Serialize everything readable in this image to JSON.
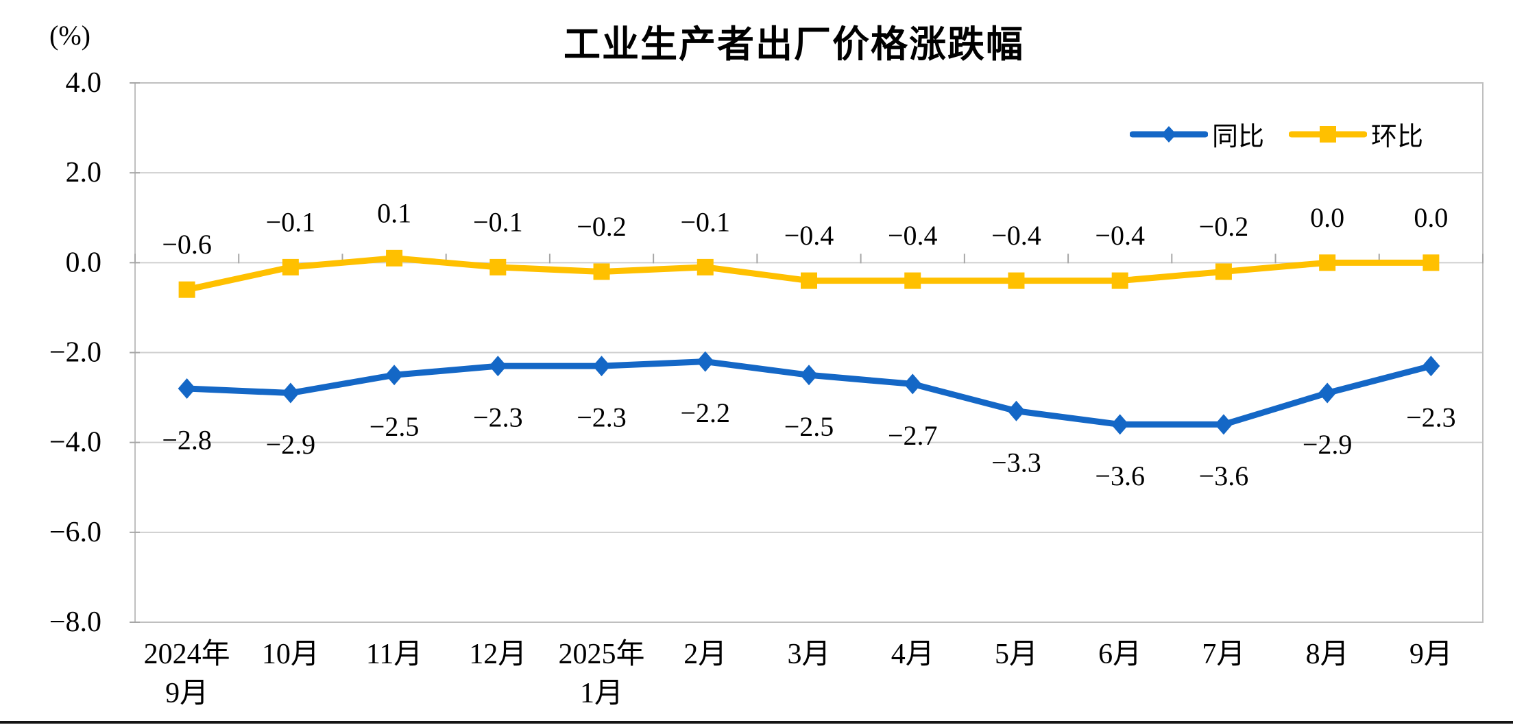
{
  "chart_data": {
    "type": "line",
    "title": "工业生产者出厂价格涨跌幅",
    "y_axis_unit": "(%)",
    "ylim": [
      -8.0,
      4.0
    ],
    "ytick_interval": 2.0,
    "yticks": [
      "4.0",
      "2.0",
      "0.0",
      "-2.0",
      "-4.0",
      "-6.0",
      "-8.0"
    ],
    "grid": true,
    "legend_position": "top-right",
    "categories": [
      "2024年9月",
      "10月",
      "11月",
      "12月",
      "2025年1月",
      "2月",
      "3月",
      "4月",
      "5月",
      "6月",
      "7月",
      "8月",
      "9月"
    ],
    "category_label_lines": [
      [
        "2024年",
        "9月"
      ],
      [
        "10月"
      ],
      [
        "11月"
      ],
      [
        "12月"
      ],
      [
        "2025年",
        "1月"
      ],
      [
        "2月"
      ],
      [
        "3月"
      ],
      [
        "4月"
      ],
      [
        "5月"
      ],
      [
        "6月"
      ],
      [
        "7月"
      ],
      [
        "8月"
      ],
      [
        "9月"
      ]
    ],
    "series": [
      {
        "name": "同比",
        "marker": "diamond",
        "color": "#1467C6",
        "values": [
          -2.8,
          -2.9,
          -2.5,
          -2.3,
          -2.3,
          -2.2,
          -2.5,
          -2.7,
          -3.3,
          -3.6,
          -3.6,
          -2.9,
          -2.3
        ],
        "labels": [
          "-2.8",
          "-2.9",
          "-2.5",
          "-2.3",
          "-2.3",
          "-2.2",
          "-2.5",
          "-2.7",
          "-3.3",
          "-3.6",
          "-3.6",
          "-2.9",
          "-2.3"
        ]
      },
      {
        "name": "环比",
        "marker": "square",
        "color": "#FFC000",
        "values": [
          -0.6,
          -0.1,
          0.1,
          -0.1,
          -0.2,
          -0.1,
          -0.4,
          -0.4,
          -0.4,
          -0.4,
          -0.2,
          0.0,
          0.0
        ],
        "labels": [
          "-0.6",
          "-0.1",
          "0.1",
          "-0.1",
          "-0.2",
          "-0.1",
          "-0.4",
          "-0.4",
          "-0.4",
          "-0.4",
          "-0.2",
          "0.0",
          "0.0"
        ]
      }
    ],
    "colors": {
      "grid": "#CFCFCF",
      "border": "#BFBFBF",
      "tick": "#A6A6A6",
      "text": "#000000",
      "page_divider": "#141414"
    }
  }
}
